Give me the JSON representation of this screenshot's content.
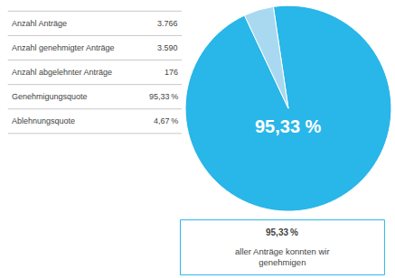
{
  "chart_data": {
    "type": "pie",
    "values": [
      95.33,
      4.67
    ],
    "colors": [
      "#29b6e8",
      "#a8d9f0"
    ],
    "table": [
      [
        "Anzahl Anträge",
        "3.766"
      ],
      [
        "Anzahl genehmigter Anträge",
        "3.590"
      ],
      [
        "Anzahl abgelehnter Anträge",
        "176"
      ],
      [
        "Genehmigungsquote",
        "95,33 %"
      ],
      [
        "Ablehnungsquote",
        "4,67 %"
      ]
    ],
    "annotations": [
      "95,33 %",
      "95,33 %",
      "aller Anträge konnten wir\ngenehmigen"
    ]
  }
}
